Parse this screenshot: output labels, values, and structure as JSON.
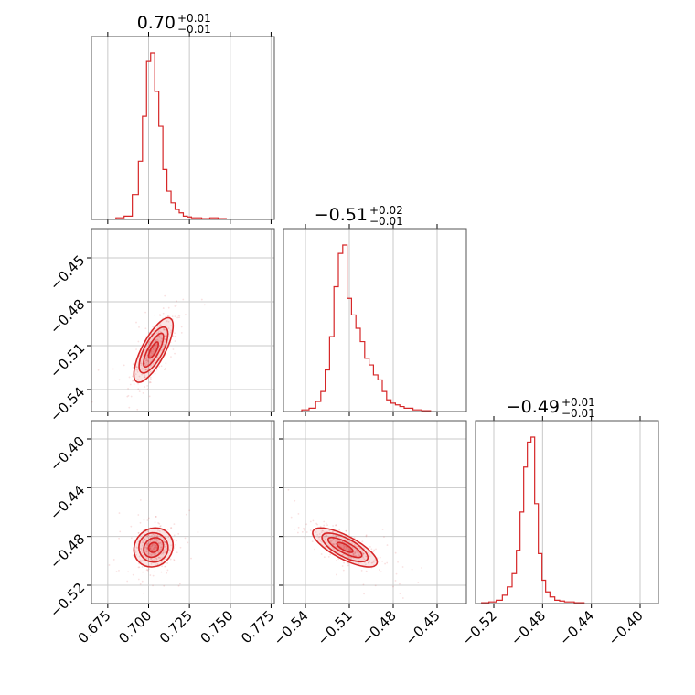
{
  "chart_data": {
    "type": "corner",
    "color": "#d62728",
    "params": [
      {
        "id": "p0",
        "title": {
          "main": "0.70",
          "sup": "+0.01",
          "sub": "−0.01"
        },
        "range": [
          0.665,
          0.777
        ],
        "median": 0.703,
        "sigma": 0.006,
        "ticks": [
          0.675,
          0.7,
          0.725,
          0.75,
          0.775
        ],
        "tick_labels": [
          "0.675",
          "0.700",
          "0.725",
          "0.750",
          "0.775"
        ]
      },
      {
        "id": "p1",
        "title": {
          "main": "−0.51",
          "sup": "+0.02",
          "sub": "−0.01"
        },
        "range": [
          -0.555,
          -0.43
        ],
        "median": -0.513,
        "sigma": 0.011,
        "ticks": [
          -0.54,
          -0.51,
          -0.48,
          -0.45
        ],
        "tick_labels": [
          "−0.54",
          "−0.51",
          "−0.48",
          "−0.45"
        ]
      },
      {
        "id": "p2",
        "title": {
          "main": "−0.49",
          "sup": "+0.01",
          "sub": "−0.01"
        },
        "range": [
          -0.535,
          -0.385
        ],
        "median": -0.489,
        "sigma": 0.008,
        "ticks": [
          -0.52,
          -0.48,
          -0.44,
          -0.4
        ],
        "tick_labels": [
          "−0.52",
          "−0.48",
          "−0.44",
          "−0.40"
        ]
      }
    ],
    "hist": [
      {
        "x": [
          0.6825,
          0.6875,
          0.6925,
          0.695,
          0.6975,
          0.7,
          0.7025,
          0.705,
          0.7075,
          0.71,
          0.7125,
          0.715,
          0.7175,
          0.72,
          0.7225,
          0.725,
          0.7275,
          0.73,
          0.735,
          0.74,
          0.745
        ],
        "y": [
          0.01,
          0.02,
          0.15,
          0.35,
          0.62,
          0.95,
          1.0,
          0.77,
          0.56,
          0.3,
          0.17,
          0.1,
          0.06,
          0.04,
          0.02,
          0.015,
          0.01,
          0.01,
          0.005,
          0.01,
          0.005
        ]
      },
      {
        "x": [
          -0.54,
          -0.535,
          -0.531,
          -0.528,
          -0.525,
          -0.522,
          -0.519,
          -0.516,
          -0.513,
          -0.51,
          -0.507,
          -0.504,
          -0.501,
          -0.498,
          -0.495,
          -0.492,
          -0.489,
          -0.486,
          -0.483,
          -0.48,
          -0.477,
          -0.474,
          -0.471,
          -0.468,
          -0.465,
          -0.462,
          -0.459,
          -0.456
        ],
        "y": [
          0.01,
          0.02,
          0.06,
          0.12,
          0.25,
          0.45,
          0.75,
          0.95,
          1.0,
          0.68,
          0.58,
          0.5,
          0.42,
          0.32,
          0.28,
          0.22,
          0.19,
          0.12,
          0.07,
          0.05,
          0.04,
          0.03,
          0.02,
          0.02,
          0.01,
          0.01,
          0.005,
          0.005
        ]
      },
      {
        "x": [
          -0.527,
          -0.521,
          -0.515,
          -0.511,
          -0.507,
          -0.503,
          -0.5,
          -0.497,
          -0.494,
          -0.491,
          -0.488,
          -0.485,
          -0.482,
          -0.479,
          -0.476,
          -0.472,
          -0.468,
          -0.464,
          -0.46,
          -0.456,
          -0.452,
          -0.448
        ],
        "y": [
          0.005,
          0.01,
          0.02,
          0.05,
          0.1,
          0.18,
          0.32,
          0.55,
          0.82,
          0.97,
          1.0,
          0.6,
          0.3,
          0.14,
          0.07,
          0.04,
          0.02,
          0.015,
          0.01,
          0.01,
          0.005,
          0.005
        ]
      }
    ],
    "pairs": [
      {
        "x": 0,
        "y": 1,
        "rho": 0.75
      },
      {
        "x": 0,
        "y": 2,
        "rho": 0.1
      },
      {
        "x": 1,
        "y": 2,
        "rho": -0.75
      }
    ],
    "contour_levels": [
      0.5,
      1.0,
      1.5,
      2.0
    ]
  }
}
